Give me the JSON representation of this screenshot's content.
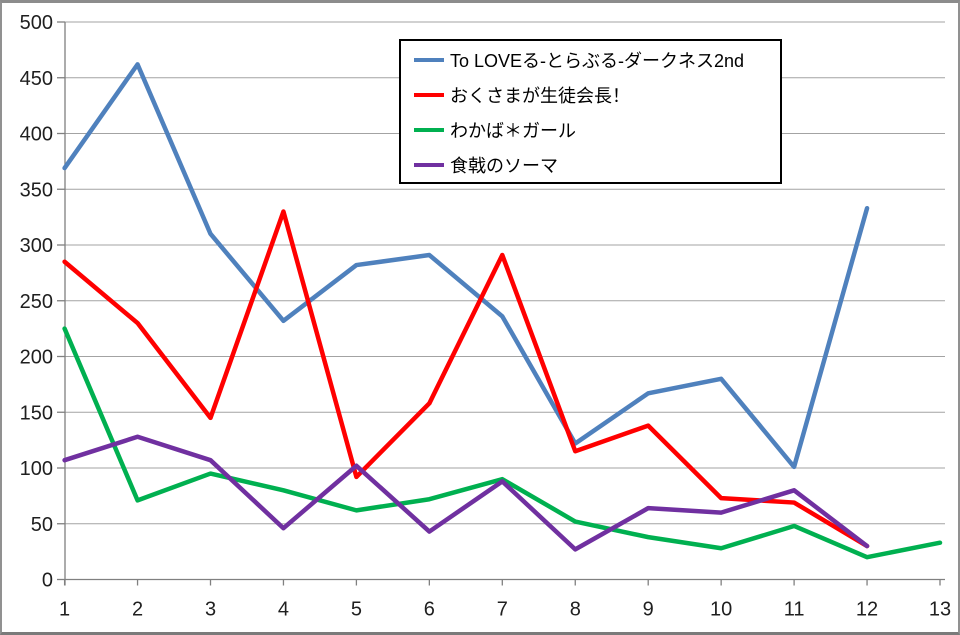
{
  "chart_data": {
    "type": "line",
    "xlim": [
      1,
      13
    ],
    "ylim": [
      0,
      500
    ],
    "y_step": 50,
    "grid": true,
    "legend_position": "top-center",
    "x_tick_labels": [
      "1",
      "2",
      "3",
      "4",
      "5",
      "6",
      "7",
      "8",
      "9",
      "10",
      "11",
      "12",
      "13"
    ],
    "y_tick_labels": [
      "0",
      "50",
      "100",
      "150",
      "200",
      "250",
      "300",
      "350",
      "400",
      "450",
      "500"
    ],
    "categories": [
      1,
      2,
      3,
      4,
      5,
      6,
      7,
      8,
      9,
      10,
      11,
      12,
      13
    ],
    "series": [
      {
        "name": "To LOVEる-とらぶる-ダークネス2nd",
        "color": "#4F81BD",
        "values": [
          369,
          462,
          310,
          232,
          282,
          291,
          236,
          122,
          167,
          180,
          101,
          333,
          null
        ]
      },
      {
        "name": "おくさまが生徒会長！",
        "color": "#FF0000",
        "values": [
          285,
          230,
          145,
          330,
          92,
          158,
          291,
          115,
          138,
          73,
          69,
          30,
          null
        ]
      },
      {
        "name": "わかば＊ガール",
        "color": "#00B050",
        "values": [
          225,
          71,
          95,
          80,
          62,
          72,
          90,
          52,
          38,
          28,
          48,
          20,
          33
        ]
      },
      {
        "name": "食戟のソーマ",
        "color": "#7030A0",
        "values": [
          107,
          128,
          107,
          46,
          102,
          43,
          88,
          27,
          64,
          60,
          80,
          30,
          null
        ]
      }
    ],
    "style_colors": {
      "gridline": "#A3A3A3",
      "axis": "#808080",
      "tick_label": "#1F1F1F",
      "plot_background": "#FFFFFF",
      "legend_border": "#000000"
    }
  }
}
